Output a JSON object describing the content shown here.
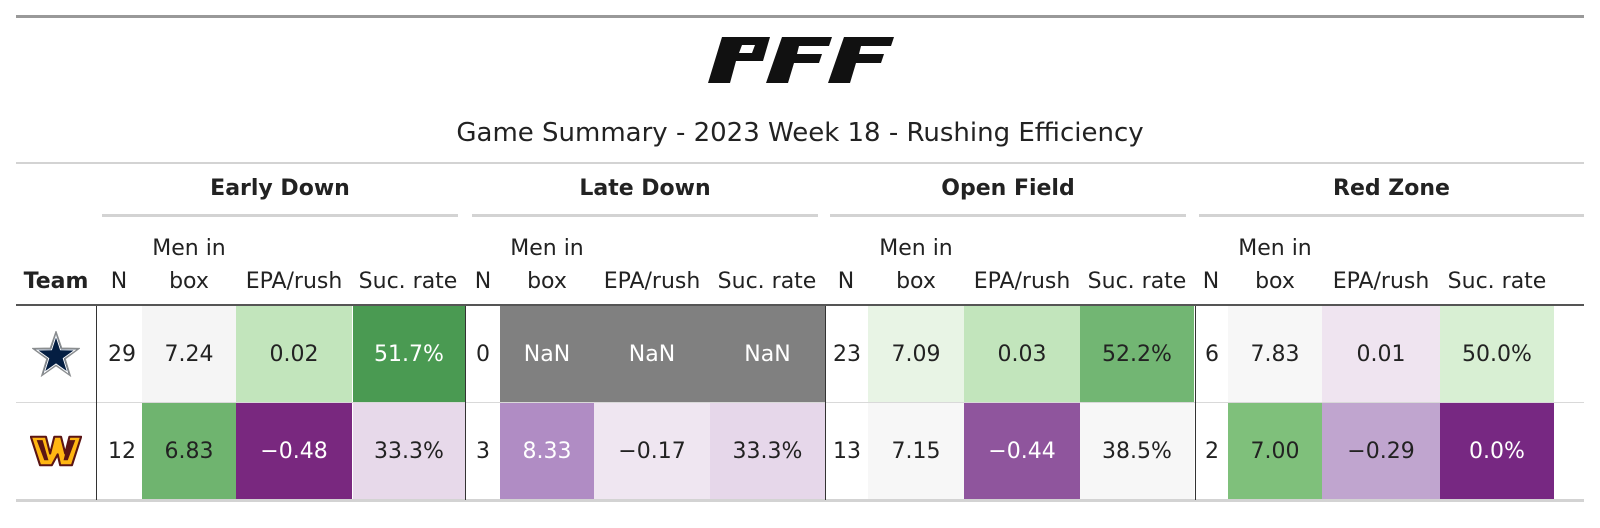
{
  "brand": {
    "logo_text": "PFF"
  },
  "title": "Game Summary - 2023 Week 18 - Rushing Efficiency",
  "groups": [
    "Early Down",
    "Late Down",
    "Open Field",
    "Red Zone"
  ],
  "columns": {
    "team": "Team",
    "n": "N",
    "men_in_box_line1": "Men in",
    "men_in_box_line2": "box",
    "epa": "EPA/rush",
    "suc": "Suc. rate"
  },
  "rows": [
    {
      "team_icon": "dallas-cowboys-star-icon",
      "early": {
        "n": "29",
        "box": "7.24",
        "epa": "0.02",
        "suc": "51.7%"
      },
      "late": {
        "n": "0",
        "box": "NaN",
        "epa": "NaN",
        "suc": "NaN"
      },
      "open": {
        "n": "23",
        "box": "7.09",
        "epa": "0.03",
        "suc": "52.2%"
      },
      "red": {
        "n": "6",
        "box": "7.83",
        "epa": "0.01",
        "suc": "50.0%"
      }
    },
    {
      "team_icon": "washington-commanders-w-icon",
      "early": {
        "n": "12",
        "box": "6.83",
        "epa": "−0.48",
        "suc": "33.3%"
      },
      "late": {
        "n": "3",
        "box": "8.33",
        "epa": "−0.17",
        "suc": "33.3%"
      },
      "open": {
        "n": "13",
        "box": "7.15",
        "epa": "−0.44",
        "suc": "38.5%"
      },
      "red": {
        "n": "2",
        "box": "7.00",
        "epa": "−0.29",
        "suc": "0.0%"
      }
    }
  ],
  "cell_colors": {
    "row0": {
      "early": {
        "box": "#f5f5f5",
        "epa": "#c2e5bc",
        "suc": "#4a9a52"
      },
      "late": {
        "box": "#808080",
        "epa": "#808080",
        "suc": "#808080"
      },
      "open": {
        "box": "#e8f4e5",
        "epa": "#c2e5bc",
        "suc": "#72b673"
      },
      "red": {
        "box": "#f7f7f7",
        "epa": "#efe4f0",
        "suc": "#d8efd3"
      }
    },
    "row1": {
      "early": {
        "box": "#6fb46f",
        "epa": "#79287f",
        "suc": "#e7d9ea"
      },
      "late": {
        "box": "#b08cc4",
        "epa": "#efe6f1",
        "suc": "#e6d7ea"
      },
      "open": {
        "box": "#f7f7f7",
        "epa": "#8f559d",
        "suc": "#f7f7f7"
      },
      "red": {
        "box": "#7fc07b",
        "epa": "#c0a5cf",
        "suc": "#772882"
      }
    }
  },
  "team_colors": {
    "cowboys_navy": "#041e42",
    "commanders_burgundy": "#5a1414",
    "commanders_gold": "#ffb612"
  }
}
